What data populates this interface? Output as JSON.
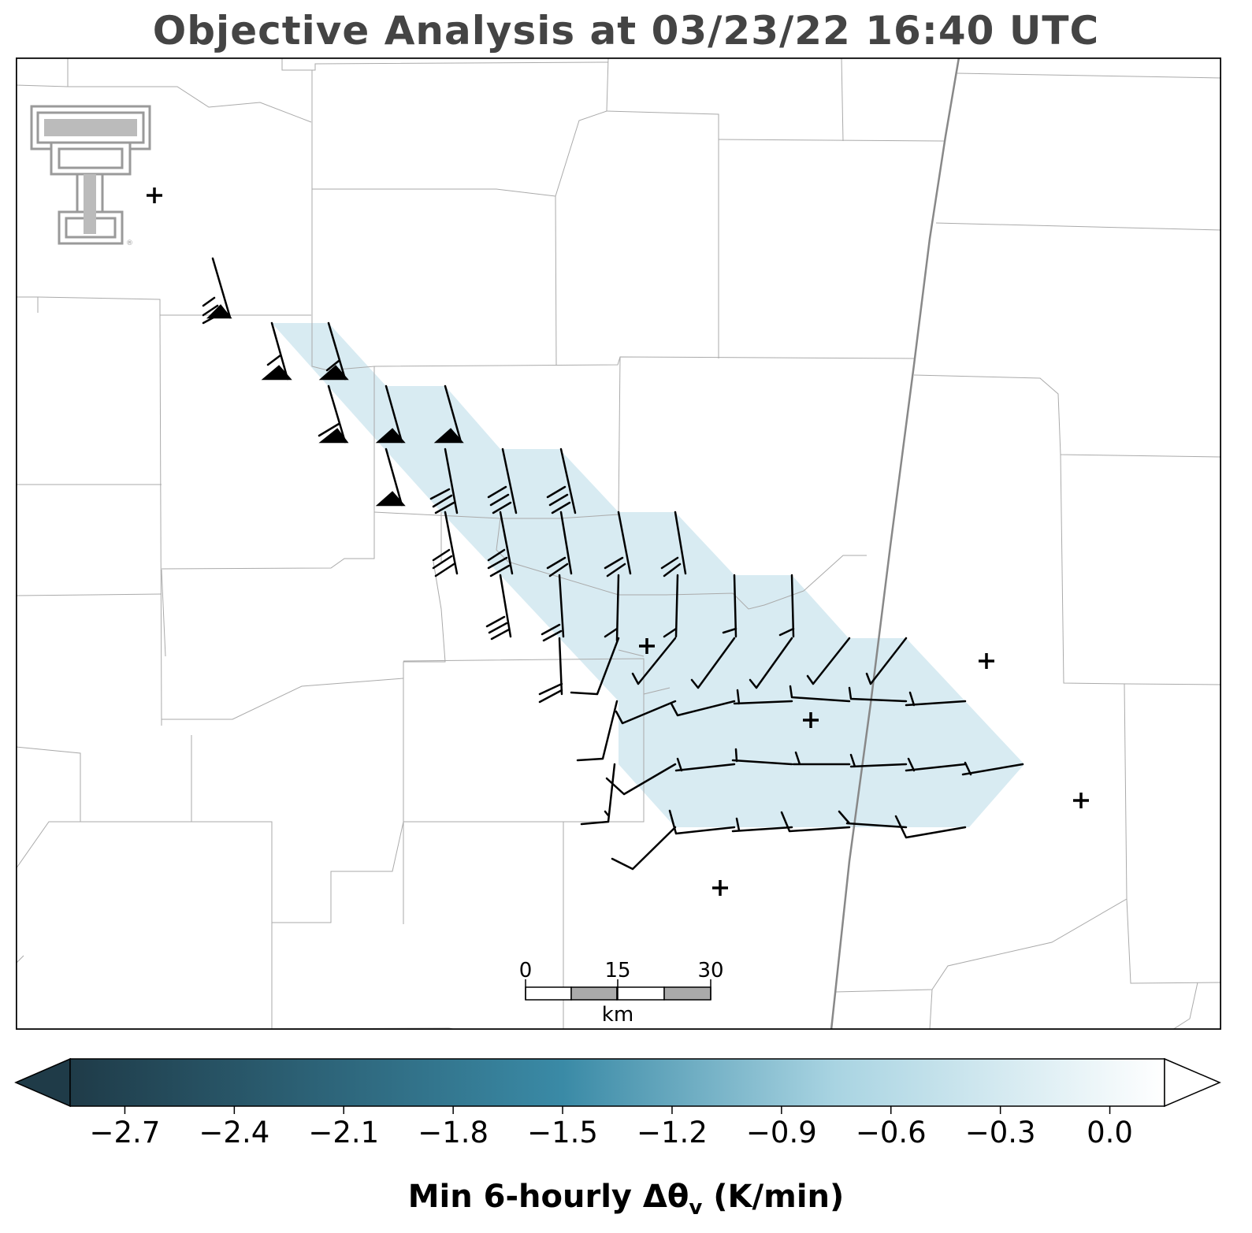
{
  "title": "Objective Analysis at 03/23/22 16:40 UTC",
  "scale_bar": {
    "ticks": [
      "0",
      "15",
      "30"
    ],
    "unit": "km"
  },
  "colorbar": {
    "ticks": [
      "−2.7",
      "−2.4",
      "−2.1",
      "−1.8",
      "−1.5",
      "−1.2",
      "−0.9",
      "−0.6",
      "−0.3",
      "0.0"
    ],
    "tick_values": [
      -2.7,
      -2.4,
      -2.1,
      -1.8,
      -1.5,
      -1.2,
      -0.9,
      -0.6,
      -0.3,
      0.0
    ],
    "range": [
      -2.85,
      0.15
    ],
    "extend": "both",
    "colors": [
      "#1f3b48",
      "#3a8aa6",
      "#a9d4e2",
      "#ffffff"
    ],
    "label_main": "Min 6-hourly Δθ",
    "label_sub": "v",
    "label_unit": " (K/min)"
  },
  "field": {
    "value_approx": -0.6,
    "color": "#d8ebf2"
  },
  "colors": {
    "title": "#444444",
    "county_line": "#aaaaaa",
    "highway": "#888888"
  },
  "logo": "texas-tech-double-t-logo"
}
